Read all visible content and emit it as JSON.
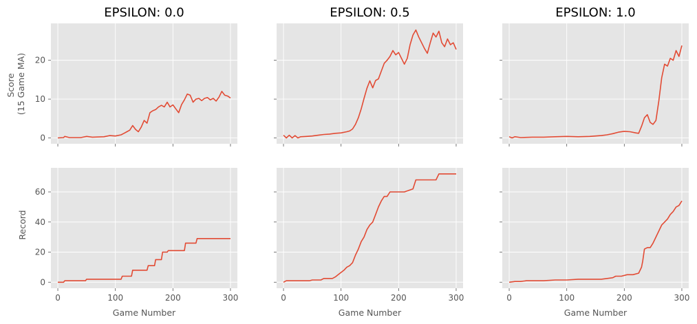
{
  "figure": {
    "col_titles": [
      "EPSILON: 0.0",
      "EPSILON: 0.5",
      "EPSILON: 1.0"
    ],
    "x_label": "Game Number",
    "row_labels": [
      [
        "Score",
        "(15 Game MA)"
      ],
      [
        "Record"
      ]
    ],
    "line_color": "#e24a33",
    "background_color": "#e5e5e5"
  },
  "chart_data": [
    {
      "type": "line",
      "title": "EPSILON: 0.0",
      "ylabel": "Score (15 Game MA)",
      "xlabel": "",
      "xlim": [
        -12,
        312
      ],
      "ylim": [
        -1.5,
        29.5
      ],
      "xticks": [
        0,
        100,
        200,
        300
      ],
      "yticks": [
        0,
        10,
        20
      ],
      "grid": true,
      "series": [
        {
          "x": [
            0,
            10,
            12,
            20,
            40,
            50,
            60,
            80,
            90,
            100,
            110,
            115,
            120,
            125,
            130,
            135,
            140,
            145,
            150,
            155,
            160,
            165,
            170,
            175,
            180,
            185,
            190,
            195,
            200,
            205,
            210,
            215,
            220,
            225,
            230,
            235,
            240,
            245,
            250,
            255,
            260,
            265,
            270,
            275,
            280,
            285,
            290,
            295,
            300
          ],
          "values": [
            0,
            0.1,
            0.4,
            0.1,
            0.1,
            0.4,
            0.2,
            0.3,
            0.6,
            0.5,
            0.8,
            1.2,
            1.6,
            2.0,
            3.2,
            2.2,
            1.6,
            2.8,
            4.5,
            3.8,
            6.5,
            7.0,
            7.3,
            8.0,
            8.4,
            8.0,
            9.2,
            8.0,
            8.5,
            7.5,
            6.5,
            8.6,
            9.8,
            11.3,
            11.0,
            9.2,
            10.0,
            10.2,
            9.6,
            10.2,
            10.4,
            9.8,
            10.2,
            9.5,
            10.5,
            12.0,
            11.0,
            10.8,
            10.3
          ]
        }
      ]
    },
    {
      "type": "line",
      "title": "EPSILON: 0.5",
      "ylabel": "",
      "xlabel": "",
      "xlim": [
        -12,
        312
      ],
      "ylim": [
        -1.5,
        29.5
      ],
      "xticks": [
        0,
        100,
        200,
        300
      ],
      "yticks": [
        0,
        10,
        20
      ],
      "grid": true,
      "series": [
        {
          "x": [
            0,
            5,
            10,
            15,
            20,
            25,
            30,
            40,
            50,
            60,
            70,
            80,
            90,
            100,
            110,
            115,
            120,
            125,
            130,
            135,
            140,
            145,
            150,
            155,
            160,
            165,
            170,
            175,
            180,
            185,
            190,
            195,
            200,
            205,
            210,
            215,
            220,
            225,
            230,
            235,
            240,
            245,
            250,
            255,
            260,
            265,
            270,
            275,
            280,
            285,
            290,
            295,
            300
          ],
          "values": [
            0.7,
            0.0,
            0.7,
            0.0,
            0.6,
            0.0,
            0.3,
            0.4,
            0.5,
            0.7,
            0.9,
            1.0,
            1.2,
            1.3,
            1.6,
            1.8,
            2.3,
            3.5,
            5.2,
            7.5,
            10.2,
            12.8,
            14.7,
            12.9,
            14.8,
            15.2,
            17.2,
            19.2,
            20.0,
            21.0,
            22.5,
            21.4,
            22.0,
            20.5,
            19.0,
            20.5,
            24.0,
            26.5,
            27.8,
            26.0,
            24.5,
            23.0,
            21.8,
            24.5,
            27.0,
            26.0,
            27.5,
            24.5,
            23.5,
            25.5,
            24.0,
            24.5,
            22.8
          ]
        }
      ]
    },
    {
      "type": "line",
      "title": "EPSILON: 1.0",
      "ylabel": "",
      "xlabel": "",
      "xlim": [
        -12,
        312
      ],
      "ylim": [
        -1.5,
        29.5
      ],
      "xticks": [
        0,
        100,
        200,
        300
      ],
      "yticks": [
        0,
        10,
        20
      ],
      "grid": true,
      "series": [
        {
          "x": [
            0,
            5,
            10,
            20,
            40,
            60,
            80,
            100,
            120,
            140,
            160,
            170,
            180,
            190,
            200,
            210,
            220,
            225,
            230,
            235,
            240,
            245,
            250,
            255,
            260,
            265,
            270,
            275,
            280,
            285,
            290,
            295,
            300
          ],
          "values": [
            0.3,
            0.0,
            0.3,
            0.1,
            0.2,
            0.2,
            0.3,
            0.4,
            0.3,
            0.4,
            0.6,
            0.8,
            1.1,
            1.5,
            1.7,
            1.6,
            1.3,
            1.2,
            3.0,
            5.2,
            6.0,
            4.0,
            3.5,
            4.5,
            9.5,
            15.5,
            19.0,
            18.5,
            20.5,
            20.0,
            22.5,
            21.0,
            23.8
          ]
        }
      ]
    },
    {
      "type": "line",
      "title": "",
      "ylabel": "Record",
      "xlabel": "Game Number",
      "xlim": [
        -12,
        312
      ],
      "ylim": [
        -4,
        76
      ],
      "xticks": [
        0,
        100,
        200,
        300
      ],
      "yticks": [
        0,
        20,
        40,
        60
      ],
      "grid": true,
      "series": [
        {
          "x": [
            0,
            10,
            12,
            30,
            32,
            48,
            50,
            100,
            102,
            110,
            112,
            128,
            130,
            145,
            147,
            155,
            157,
            168,
            170,
            180,
            182,
            190,
            192,
            220,
            222,
            240,
            242,
            300
          ],
          "values": [
            0,
            0,
            1,
            1,
            1,
            1,
            2,
            2,
            2,
            2,
            4,
            4,
            8,
            8,
            8,
            8,
            11,
            11,
            15,
            15,
            20,
            20,
            21,
            21,
            26,
            26,
            29,
            29
          ]
        }
      ]
    },
    {
      "type": "line",
      "title": "",
      "ylabel": "",
      "xlabel": "Game Number",
      "xlim": [
        -12,
        312
      ],
      "ylim": [
        -4,
        76
      ],
      "xticks": [
        0,
        100,
        200,
        300
      ],
      "yticks": [
        0,
        20,
        40,
        60
      ],
      "grid": true,
      "series": [
        {
          "x": [
            0,
            5,
            45,
            50,
            65,
            70,
            85,
            90,
            95,
            100,
            105,
            110,
            115,
            120,
            125,
            130,
            135,
            140,
            145,
            150,
            155,
            160,
            165,
            170,
            175,
            180,
            185,
            190,
            210,
            225,
            230,
            265,
            270,
            300
          ],
          "values": [
            0,
            1,
            1,
            1.5,
            1.5,
            2.5,
            2.5,
            3.5,
            5,
            6.5,
            8,
            10,
            11,
            13,
            18,
            22,
            27,
            30,
            35,
            38,
            40,
            45,
            50,
            54,
            57,
            57,
            60,
            60,
            60,
            62,
            68,
            68,
            72,
            72
          ]
        }
      ]
    },
    {
      "type": "line",
      "title": "",
      "ylabel": "",
      "xlabel": "Game Number",
      "xlim": [
        -12,
        312
      ],
      "ylim": [
        -4,
        76
      ],
      "xticks": [
        0,
        100,
        200,
        300
      ],
      "yticks": [
        0,
        20,
        40,
        60
      ],
      "grid": true,
      "series": [
        {
          "x": [
            0,
            10,
            20,
            30,
            60,
            80,
            100,
            120,
            140,
            160,
            180,
            185,
            195,
            205,
            215,
            225,
            230,
            232,
            235,
            240,
            245,
            250,
            255,
            260,
            265,
            270,
            275,
            280,
            285,
            290,
            295,
            300
          ],
          "values": [
            0,
            0.5,
            0.5,
            1,
            1,
            1.5,
            1.5,
            2,
            2,
            2,
            3,
            4,
            4,
            5,
            5,
            6,
            10,
            14,
            22,
            23,
            23,
            26,
            30,
            34,
            38,
            40,
            42,
            45,
            47,
            50,
            51,
            54
          ]
        }
      ]
    }
  ]
}
